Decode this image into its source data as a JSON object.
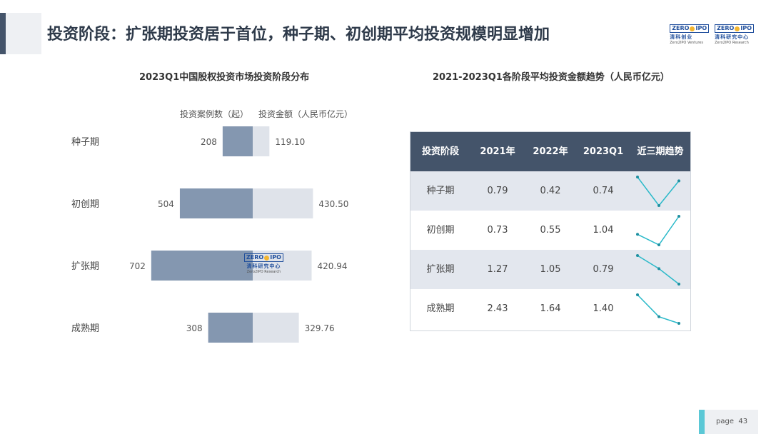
{
  "header": {
    "title": "投资阶段：扩张期投资居于首位，种子期、初创期平均投资规模明显增加",
    "logo1": {
      "mark_left": "ZERO",
      "mark_right": "IPO",
      "cn": "清科创业",
      "en": "Zero2IPO Ventures"
    },
    "logo2": {
      "mark_left": "ZERO",
      "mark_right": "IPO",
      "cn": "清科研究中心",
      "en": "Zero2IPO Research"
    }
  },
  "watermark": {
    "mark_left": "ZERO",
    "mark_right": "IPO",
    "cn": "清科研究中心",
    "en": "Zero2IPO Research"
  },
  "footer": {
    "page_label": "page",
    "page_number": "43"
  },
  "colors": {
    "cases": "#8497b0",
    "amount": "#dfe3ea",
    "header": "#44546a",
    "spark": "#29b9c9"
  },
  "chart_data": [
    {
      "type": "bar",
      "title": "2023Q1中国股权投资市场投资阶段分布",
      "categories": [
        "种子期",
        "初创期",
        "扩张期",
        "成熟期"
      ],
      "series": [
        {
          "name": "投资案例数（起）",
          "values": [
            208,
            504,
            702,
            308
          ]
        },
        {
          "name": "投资金额（人民币亿元）",
          "values": [
            119.1,
            430.5,
            420.94,
            329.76
          ]
        }
      ],
      "value_labels": {
        "cases": [
          "208",
          "504",
          "702",
          "308"
        ],
        "amount": [
          "119.10",
          "430.50",
          "420.94",
          "329.76"
        ]
      }
    },
    {
      "type": "table",
      "title": "2021-2023Q1各阶段平均投资金额趋势（人民币亿元）",
      "columns": [
        "投资阶段",
        "2021年",
        "2022年",
        "2023Q1",
        "近三期趋势"
      ],
      "rows": [
        {
          "stage": "种子期",
          "v2021": "0.79",
          "v2022": "0.42",
          "v2023": "0.74",
          "trend": [
            0.79,
            0.42,
            0.74
          ]
        },
        {
          "stage": "初创期",
          "v2021": "0.73",
          "v2022": "0.55",
          "v2023": "1.04",
          "trend": [
            0.73,
            0.55,
            1.04
          ]
        },
        {
          "stage": "扩张期",
          "v2021": "1.27",
          "v2022": "1.05",
          "v2023": "0.79",
          "trend": [
            1.27,
            1.05,
            0.79
          ]
        },
        {
          "stage": "成熟期",
          "v2021": "2.43",
          "v2022": "1.64",
          "v2023": "1.40",
          "trend": [
            2.43,
            1.64,
            1.4
          ]
        }
      ]
    }
  ]
}
